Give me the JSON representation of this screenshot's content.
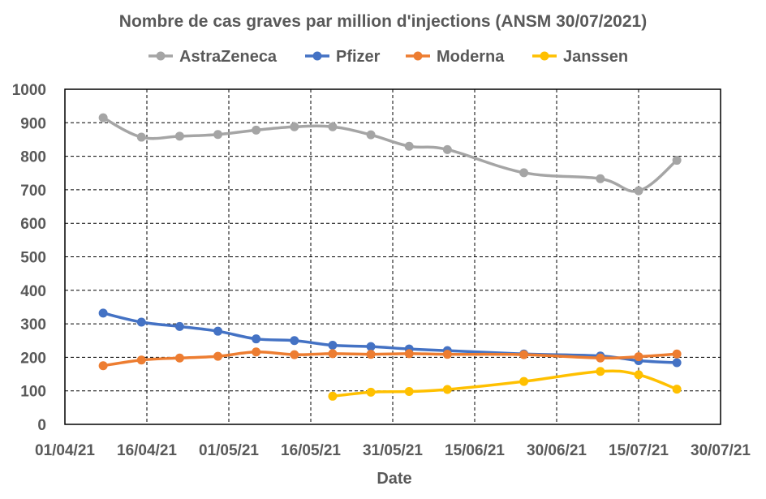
{
  "chart_data": {
    "type": "line",
    "title": "Nombre de cas graves par million d'injections (ANSM 30/07/2021)",
    "xlabel": "Date",
    "ylabel": "",
    "ylim": [
      0,
      1000
    ],
    "yticks": [
      0,
      100,
      200,
      300,
      400,
      500,
      600,
      700,
      800,
      900,
      1000
    ],
    "xlim": [
      "2021-04-01",
      "2021-07-30"
    ],
    "xticks": [
      "01/04/21",
      "16/04/21",
      "01/05/21",
      "16/05/21",
      "31/05/21",
      "15/06/21",
      "30/06/21",
      "15/07/21",
      "30/07/21"
    ],
    "grid": true,
    "legend_position": "top",
    "series": [
      {
        "name": "AstraZeneca",
        "color": "#A5A5A5",
        "points": [
          {
            "x": "2021-04-08",
            "y": 915
          },
          {
            "x": "2021-04-15",
            "y": 857
          },
          {
            "x": "2021-04-22",
            "y": 860
          },
          {
            "x": "2021-04-29",
            "y": 865
          },
          {
            "x": "2021-05-06",
            "y": 878
          },
          {
            "x": "2021-05-13",
            "y": 888
          },
          {
            "x": "2021-05-20",
            "y": 888
          },
          {
            "x": "2021-05-27",
            "y": 864
          },
          {
            "x": "2021-06-03",
            "y": 830
          },
          {
            "x": "2021-06-10",
            "y": 820
          },
          {
            "x": "2021-06-24",
            "y": 751
          },
          {
            "x": "2021-07-08",
            "y": 733
          },
          {
            "x": "2021-07-15",
            "y": 697
          },
          {
            "x": "2021-07-22",
            "y": 788
          }
        ]
      },
      {
        "name": "Pfizer",
        "color": "#4472C4",
        "points": [
          {
            "x": "2021-04-08",
            "y": 332
          },
          {
            "x": "2021-04-15",
            "y": 305
          },
          {
            "x": "2021-04-22",
            "y": 292
          },
          {
            "x": "2021-04-29",
            "y": 278
          },
          {
            "x": "2021-05-06",
            "y": 255
          },
          {
            "x": "2021-05-13",
            "y": 250
          },
          {
            "x": "2021-05-20",
            "y": 236
          },
          {
            "x": "2021-05-27",
            "y": 232
          },
          {
            "x": "2021-06-03",
            "y": 225
          },
          {
            "x": "2021-06-10",
            "y": 220
          },
          {
            "x": "2021-06-24",
            "y": 210
          },
          {
            "x": "2021-07-08",
            "y": 204
          },
          {
            "x": "2021-07-15",
            "y": 190
          },
          {
            "x": "2021-07-22",
            "y": 184
          }
        ]
      },
      {
        "name": "Moderna",
        "color": "#ED7D31",
        "points": [
          {
            "x": "2021-04-08",
            "y": 175
          },
          {
            "x": "2021-04-15",
            "y": 192
          },
          {
            "x": "2021-04-22",
            "y": 198
          },
          {
            "x": "2021-04-29",
            "y": 203
          },
          {
            "x": "2021-05-06",
            "y": 216
          },
          {
            "x": "2021-05-13",
            "y": 208
          },
          {
            "x": "2021-05-20",
            "y": 211
          },
          {
            "x": "2021-05-27",
            "y": 209
          },
          {
            "x": "2021-06-03",
            "y": 211
          },
          {
            "x": "2021-06-10",
            "y": 209
          },
          {
            "x": "2021-06-24",
            "y": 208
          },
          {
            "x": "2021-07-08",
            "y": 198
          },
          {
            "x": "2021-07-15",
            "y": 202
          },
          {
            "x": "2021-07-22",
            "y": 210
          }
        ]
      },
      {
        "name": "Janssen",
        "color": "#FFC000",
        "points": [
          {
            "x": "2021-05-20",
            "y": 84
          },
          {
            "x": "2021-05-27",
            "y": 96
          },
          {
            "x": "2021-06-03",
            "y": 98
          },
          {
            "x": "2021-06-10",
            "y": 104
          },
          {
            "x": "2021-06-24",
            "y": 128
          },
          {
            "x": "2021-07-08",
            "y": 158
          },
          {
            "x": "2021-07-15",
            "y": 148
          },
          {
            "x": "2021-07-22",
            "y": 105
          }
        ]
      }
    ]
  }
}
